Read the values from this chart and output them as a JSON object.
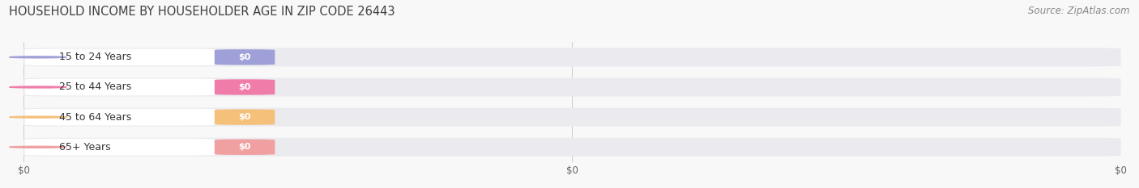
{
  "title": "HOUSEHOLD INCOME BY HOUSEHOLDER AGE IN ZIP CODE 26443",
  "source": "Source: ZipAtlas.com",
  "categories": [
    "15 to 24 Years",
    "25 to 44 Years",
    "45 to 64 Years",
    "65+ Years"
  ],
  "values": [
    0,
    0,
    0,
    0
  ],
  "bar_colors": [
    "#a0a0d8",
    "#f07caa",
    "#f5c07a",
    "#f0a0a0"
  ],
  "track_color": "#eaeaef",
  "label_bg_color": "#ffffff",
  "fig_bg_color": "#f8f8f8",
  "title_color": "#404040",
  "source_color": "#888888",
  "tick_color": "#aaaaaa",
  "title_fontsize": 10.5,
  "source_fontsize": 8.5,
  "tick_label_fontsize": 8.5,
  "bar_label_fontsize": 8,
  "category_fontsize": 9,
  "figsize": [
    14.06,
    2.33
  ],
  "dpi": 100
}
